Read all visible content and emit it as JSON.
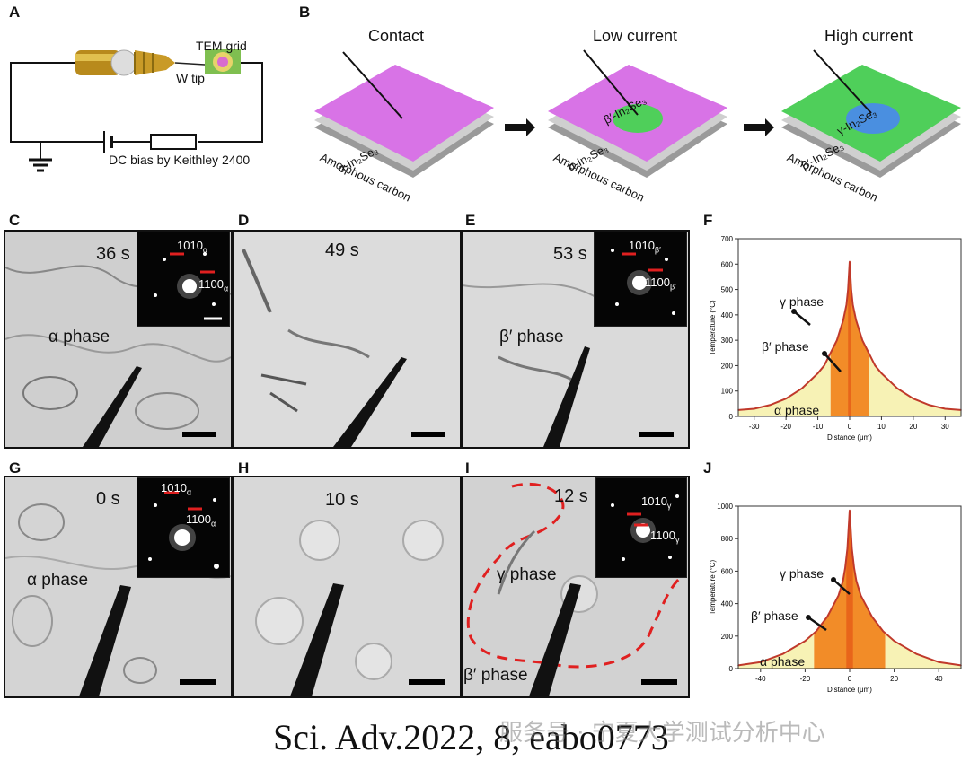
{
  "panels": {
    "A": {
      "label": "A",
      "tem_grid": "TEM grid",
      "w_tip": "W tip",
      "dc_bias": "DC bias by Keithley 2400"
    },
    "B": {
      "label": "B",
      "stages": [
        {
          "title": "Contact",
          "phase_outer": "α-In₂Se₃",
          "substrate": "Amorphous carbon"
        },
        {
          "title": "Low current",
          "phase_center": "β′-In₂Se₃",
          "phase_outer": "α-In₂Se₃",
          "substrate": "Amorphous carbon"
        },
        {
          "title": "High current",
          "phase_center": "γ-In₂Se₃",
          "phase_outer": "β′-In₂Se₃",
          "substrate": "Amorphous carbon"
        }
      ]
    },
    "C": {
      "label": "C",
      "time": "36 s",
      "phase": "α phase",
      "idx1": "1010",
      "idx1_sub": "α",
      "idx2": "1100",
      "idx2_sub": "α"
    },
    "D": {
      "label": "D",
      "time": "49 s"
    },
    "E": {
      "label": "E",
      "time": "53 s",
      "phase": "β′ phase",
      "idx1": "1010",
      "idx1_sub": "β′",
      "idx2": "1100",
      "idx2_sub": "β′"
    },
    "G": {
      "label": "G",
      "time": "0 s",
      "phase": "α phase",
      "idx1": "1010",
      "idx1_sub": "α",
      "idx2": "1100",
      "idx2_sub": "α"
    },
    "H": {
      "label": "H",
      "time": "10 s"
    },
    "I": {
      "label": "I",
      "time": "12 s",
      "phase1": "γ phase",
      "phase2": "β′ phase",
      "idx1": "1010",
      "idx1_sub": "γ",
      "idx2": "1100",
      "idx2_sub": "γ"
    },
    "F": {
      "label": "F"
    },
    "J": {
      "label": "J"
    }
  },
  "caption": "Sci. Adv.2022, 8, eabo0773",
  "watermark": "服务号 · 宁夏大学测试分析中心",
  "colors": {
    "pink": "#d873e6",
    "green": "#4fcf5a",
    "blue": "#4a8fe0",
    "curve": "#c0392b",
    "orange": "#f28c28",
    "yellow": "#f7f2b5",
    "arrow_red": "#e02020"
  },
  "chart_data": [
    {
      "type": "area",
      "panel": "F",
      "xlabel": "Distance (μm)",
      "ylabel": "Temperature (°C)",
      "xlim": [
        -35,
        35
      ],
      "ylim": [
        0,
        700
      ],
      "xticks": [
        -30,
        -20,
        -10,
        0,
        10,
        20,
        30
      ],
      "yticks": [
        0,
        100,
        200,
        300,
        400,
        500,
        600,
        700
      ],
      "x": [
        -35,
        -30,
        -25,
        -20,
        -15,
        -10,
        -8,
        -6,
        -4,
        -2,
        -1,
        -0.5,
        0,
        0.5,
        1,
        2,
        4,
        6,
        8,
        10,
        15,
        20,
        25,
        30,
        35
      ],
      "y": [
        25,
        30,
        45,
        70,
        110,
        170,
        200,
        250,
        300,
        380,
        440,
        500,
        610,
        500,
        440,
        380,
        300,
        250,
        200,
        170,
        110,
        70,
        45,
        30,
        25
      ],
      "regions": [
        {
          "name": "α phase",
          "from": -35,
          "to": -6,
          "color": "#f7f2b5"
        },
        {
          "name": "β′ phase",
          "from": -6,
          "to": 6,
          "color": "#f28c28"
        },
        {
          "name": "γ phase",
          "from": -0.5,
          "to": 0.5,
          "color": "#e8651a"
        },
        {
          "name": "α phase",
          "from": 6,
          "to": 35,
          "color": "#f7f2b5"
        }
      ],
      "annotations": [
        "γ phase",
        "β′ phase",
        "α phase"
      ]
    },
    {
      "type": "area",
      "panel": "J",
      "xlabel": "Distance (μm)",
      "ylabel": "Temperature (°C)",
      "xlim": [
        -50,
        50
      ],
      "ylim": [
        0,
        1000
      ],
      "xticks": [
        -40,
        -20,
        0,
        20,
        40
      ],
      "yticks": [
        0,
        200,
        400,
        600,
        800,
        1000
      ],
      "x": [
        -50,
        -40,
        -30,
        -20,
        -15,
        -10,
        -5,
        -3,
        -2,
        -1,
        0,
        1,
        2,
        3,
        5,
        10,
        15,
        20,
        30,
        40,
        50
      ],
      "y": [
        20,
        40,
        90,
        170,
        230,
        320,
        450,
        540,
        620,
        740,
        975,
        740,
        620,
        540,
        450,
        320,
        230,
        170,
        90,
        40,
        20
      ],
      "regions": [
        {
          "name": "α phase",
          "from": -50,
          "to": -16,
          "color": "#f7f2b5"
        },
        {
          "name": "β′ phase",
          "from": -16,
          "to": 16,
          "color": "#f28c28"
        },
        {
          "name": "γ phase",
          "from": -1.5,
          "to": 1.5,
          "color": "#e8651a"
        },
        {
          "name": "α phase",
          "from": 16,
          "to": 50,
          "color": "#f7f2b5"
        }
      ],
      "annotations": [
        "γ phase",
        "β′ phase",
        "α phase"
      ]
    }
  ]
}
